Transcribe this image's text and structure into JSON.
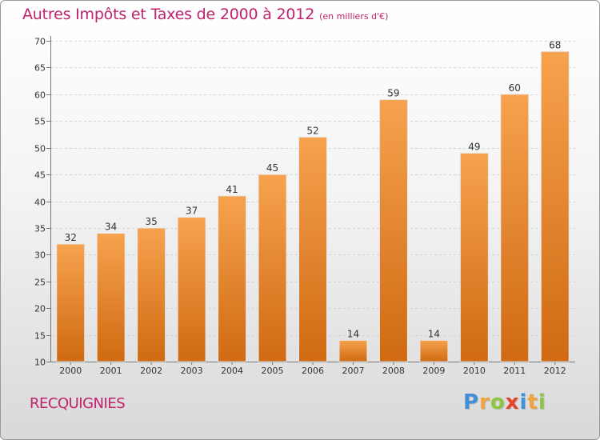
{
  "chart_data": {
    "type": "bar",
    "title": "Autres Impôts et Taxes de 2000 à 2012",
    "unit_label": "(en milliers d'€)",
    "categories": [
      "2000",
      "2001",
      "2002",
      "2003",
      "2004",
      "2005",
      "2006",
      "2007",
      "2008",
      "2009",
      "2010",
      "2011",
      "2012"
    ],
    "values": [
      32,
      34,
      35,
      37,
      41,
      45,
      52,
      14,
      59,
      14,
      49,
      60,
      68
    ],
    "ylim": [
      10,
      70
    ],
    "yticks": [
      10,
      15,
      20,
      25,
      30,
      35,
      40,
      45,
      50,
      55,
      60,
      65,
      70
    ],
    "grid": true,
    "bar_color": "#f28c28"
  },
  "commune": "RECQUIGNIES",
  "logo": {
    "letters": [
      {
        "ch": "P",
        "color": "#3f8fd6"
      },
      {
        "ch": "r",
        "color": "#f0a23b"
      },
      {
        "ch": "o",
        "color": "#8cc63f"
      },
      {
        "ch": "x",
        "color": "#e8412c"
      },
      {
        "ch": "i",
        "color": "#3f8fd6"
      },
      {
        "ch": "t",
        "color": "#f0a23b"
      },
      {
        "ch": "i",
        "color": "#8cc63f"
      }
    ]
  }
}
